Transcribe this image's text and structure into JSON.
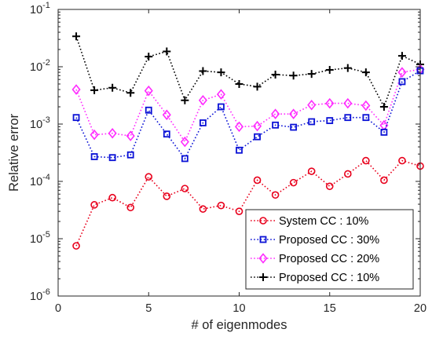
{
  "chart_data": {
    "type": "line",
    "xlabel": "# of eigenmodes",
    "ylabel": "Relative error",
    "xlim": [
      0,
      20
    ],
    "ylim": [
      1e-06,
      0.1
    ],
    "yscale": "log",
    "x_ticks": [
      0,
      5,
      10,
      15,
      20
    ],
    "x_tick_labels": [
      "0",
      "5",
      "10",
      "15",
      "20"
    ],
    "y_ticks": [
      1e-06,
      1e-05,
      0.0001,
      0.001,
      0.01,
      0.1
    ],
    "y_tick_labels": [
      {
        "base": "10",
        "exp": "-6"
      },
      {
        "base": "10",
        "exp": "-5"
      },
      {
        "base": "10",
        "exp": "-4"
      },
      {
        "base": "10",
        "exp": "-3"
      },
      {
        "base": "10",
        "exp": "-2"
      },
      {
        "base": "10",
        "exp": "-1"
      }
    ],
    "grid": false,
    "legend_position": "bottom-right",
    "x": [
      1,
      2,
      3,
      4,
      5,
      6,
      7,
      8,
      9,
      10,
      11,
      12,
      13,
      14,
      15,
      16,
      17,
      18,
      19,
      20
    ],
    "series": [
      {
        "name": "System CC : 10%",
        "color": "#e8001c",
        "marker": "circle",
        "values": [
          7.5e-06,
          3.9e-05,
          5.2e-05,
          3.5e-05,
          0.00012,
          5.5e-05,
          7.5e-05,
          3.3e-05,
          3.8e-05,
          3e-05,
          0.000105,
          5.8e-05,
          9.5e-05,
          0.00015,
          8.2e-05,
          0.000135,
          0.00023,
          0.000105,
          0.00023,
          0.000185
        ]
      },
      {
        "name": "Proposed CC : 30%",
        "color": "#0b12d6",
        "marker": "square",
        "values": [
          0.0013,
          0.00027,
          0.00026,
          0.00029,
          0.00175,
          0.00067,
          0.00025,
          0.00105,
          0.002,
          0.00035,
          0.0006,
          0.00096,
          0.00088,
          0.0011,
          0.00115,
          0.0013,
          0.0013,
          0.00072,
          0.0055,
          0.0085
        ]
      },
      {
        "name": "Proposed CC : 20%",
        "color": "#ff2bff",
        "marker": "diamond",
        "values": [
          0.004,
          0.00065,
          0.00069,
          0.00062,
          0.0038,
          0.00145,
          0.00049,
          0.0026,
          0.0033,
          0.0009,
          0.00092,
          0.0015,
          0.0015,
          0.00215,
          0.0023,
          0.0023,
          0.0021,
          0.00095,
          0.008,
          0.009
        ]
      },
      {
        "name": "Proposed CC : 10%",
        "color": "#000000",
        "marker": "plus",
        "values": [
          0.034,
          0.0039,
          0.0043,
          0.0035,
          0.015,
          0.0185,
          0.0026,
          0.0084,
          0.008,
          0.005,
          0.0045,
          0.0073,
          0.007,
          0.0075,
          0.0088,
          0.0095,
          0.008,
          0.002,
          0.0155,
          0.011
        ]
      }
    ]
  }
}
